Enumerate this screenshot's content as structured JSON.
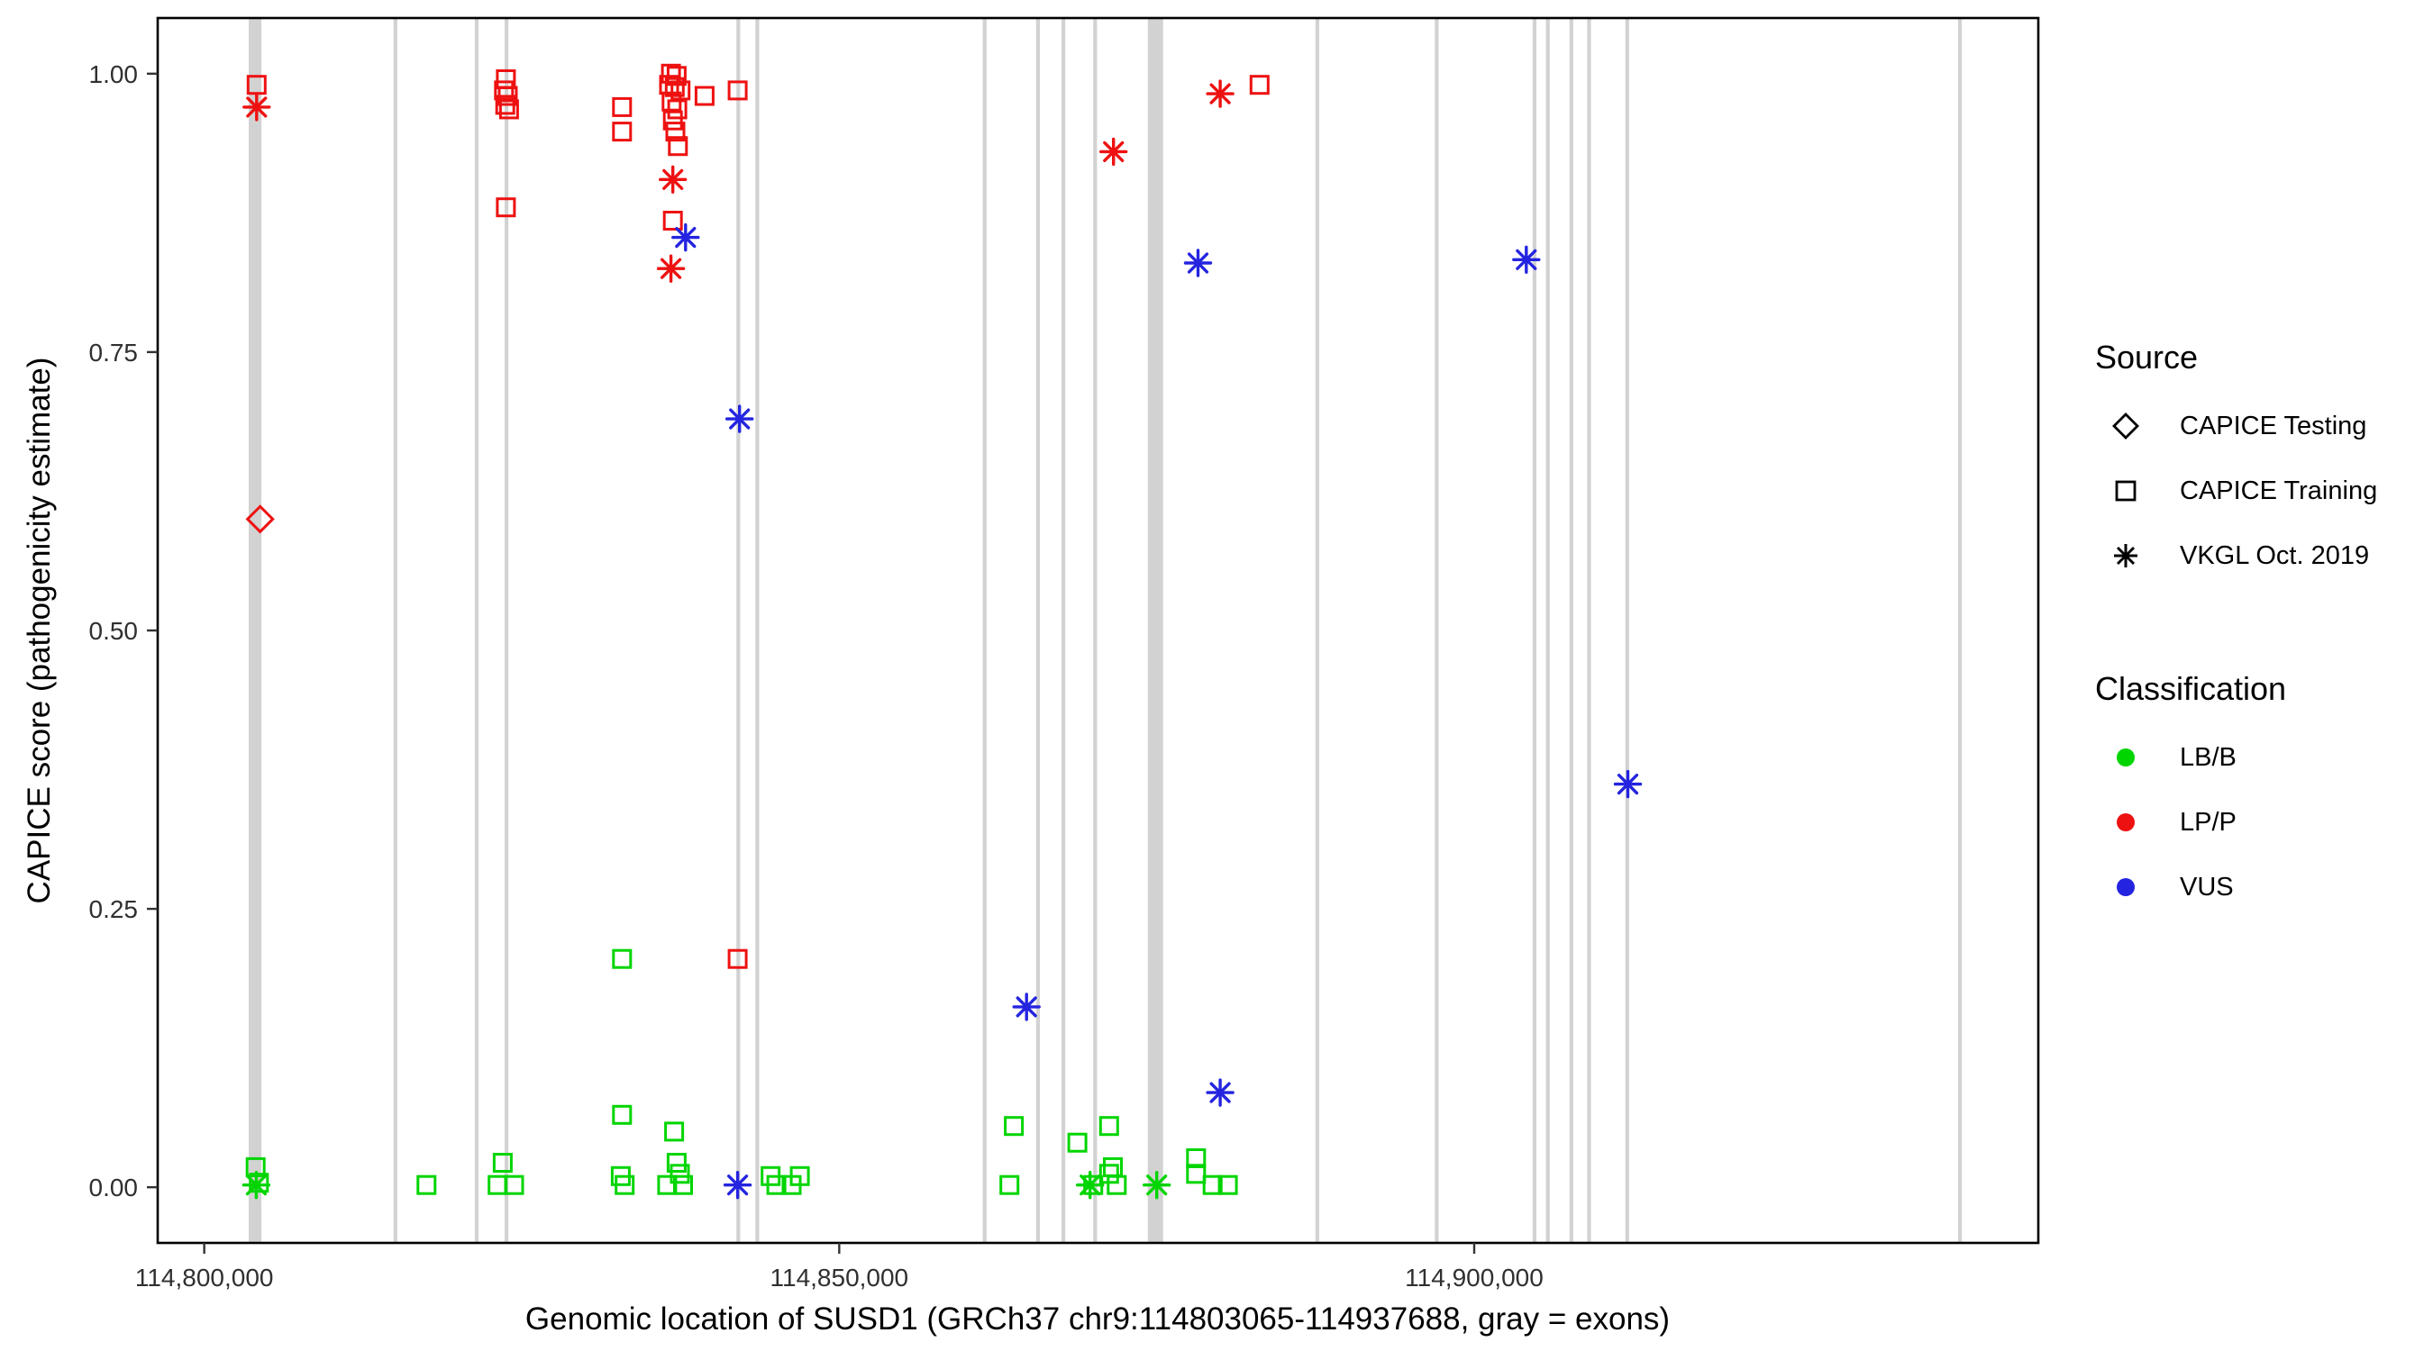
{
  "axes": {
    "x": {
      "label": "Genomic location of SUSD1 (GRCh37 chr9:114803065-114937688, gray = exons)",
      "range": [
        114796334,
        114944419
      ],
      "ticks": [
        {
          "value": 114800000,
          "label": "114,800,000"
        },
        {
          "value": 114850000,
          "label": "114,850,000"
        },
        {
          "value": 114900000,
          "label": "114,900,000"
        }
      ]
    },
    "y": {
      "label": "CAPICE score (pathogenicity estimate)",
      "range": [
        -0.05,
        1.05
      ],
      "ticks": [
        {
          "value": 0.0,
          "label": "0.00"
        },
        {
          "value": 0.25,
          "label": "0.25"
        },
        {
          "value": 0.5,
          "label": "0.50"
        },
        {
          "value": 0.75,
          "label": "0.75"
        },
        {
          "value": 1.0,
          "label": "1.00"
        }
      ]
    }
  },
  "colors": {
    "LB/B": "#00d500",
    "LP/P": "#ee1111",
    "VUS": "#2424e0",
    "exon": "#d2d2d2"
  },
  "legend": {
    "source": {
      "title": "Source",
      "items": [
        {
          "label": "CAPICE Testing",
          "shape": "diamond"
        },
        {
          "label": "CAPICE Training",
          "shape": "square"
        },
        {
          "label": "VKGL Oct. 2019",
          "shape": "asterisk"
        }
      ]
    },
    "classification": {
      "title": "Classification",
      "items": [
        {
          "label": "LB/B",
          "color": "#00d500"
        },
        {
          "label": "LP/P",
          "color": "#ee1111"
        },
        {
          "label": "VUS",
          "color": "#2424e0"
        }
      ]
    }
  },
  "chart_data": {
    "type": "scatter",
    "title": "",
    "xlabel": "Genomic location of SUSD1 (GRCh37 chr9:114803065-114937688, gray = exons)",
    "ylabel": "CAPICE score (pathogenicity estimate)",
    "xlim": [
      114796334,
      114944419
    ],
    "ylim": [
      -0.05,
      1.05
    ],
    "grid": false,
    "legend_position": "right",
    "exons_note": "gray vertical bars = exons, [start,end] genomic coords",
    "exons": [
      [
        114803500,
        114804500
      ],
      [
        114814900,
        114815200
      ],
      [
        114821300,
        114821600
      ],
      [
        114823650,
        114823950
      ],
      [
        114841900,
        114842200
      ],
      [
        114843400,
        114843700
      ],
      [
        114861300,
        114861600
      ],
      [
        114865500,
        114865800
      ],
      [
        114867500,
        114867800
      ],
      [
        114870000,
        114870300
      ],
      [
        114874300,
        114875500
      ],
      [
        114887500,
        114887800
      ],
      [
        114896900,
        114897200
      ],
      [
        114904600,
        114904900
      ],
      [
        114905650,
        114905950
      ],
      [
        114907500,
        114907800
      ],
      [
        114908900,
        114909200
      ],
      [
        114911900,
        114912200
      ],
      [
        114938100,
        114938400
      ]
    ],
    "points_format": [
      "genomic_position",
      "capice_score",
      "source(training|testing|vkgl)",
      "classification"
    ],
    "points": [
      [
        114804125,
        0.99,
        "training",
        "LP/P"
      ],
      [
        114823750,
        0.995,
        "training",
        "LP/P"
      ],
      [
        114823600,
        0.985,
        "training",
        "LP/P"
      ],
      [
        114823900,
        0.98,
        "training",
        "LP/P"
      ],
      [
        114823700,
        0.972,
        "training",
        "LP/P"
      ],
      [
        114824000,
        0.968,
        "training",
        "LP/P"
      ],
      [
        114823750,
        0.88,
        "training",
        "LP/P"
      ],
      [
        114832900,
        0.97,
        "training",
        "LP/P"
      ],
      [
        114832900,
        0.948,
        "training",
        "LP/P"
      ],
      [
        114836750,
        1.0,
        "training",
        "LP/P"
      ],
      [
        114837200,
        0.998,
        "training",
        "LP/P"
      ],
      [
        114836600,
        0.99,
        "training",
        "LP/P"
      ],
      [
        114837050,
        0.988,
        "training",
        "LP/P"
      ],
      [
        114837500,
        0.985,
        "training",
        "LP/P"
      ],
      [
        114836800,
        0.975,
        "training",
        "LP/P"
      ],
      [
        114837250,
        0.968,
        "training",
        "LP/P"
      ],
      [
        114836900,
        0.958,
        "training",
        "LP/P"
      ],
      [
        114837100,
        0.948,
        "training",
        "LP/P"
      ],
      [
        114837300,
        0.935,
        "training",
        "LP/P"
      ],
      [
        114836900,
        0.868,
        "training",
        "LP/P"
      ],
      [
        114839400,
        0.98,
        "training",
        "LP/P"
      ],
      [
        114842000,
        0.985,
        "training",
        "LP/P"
      ],
      [
        114842000,
        0.205,
        "training",
        "LP/P"
      ],
      [
        114883100,
        0.99,
        "training",
        "LP/P"
      ],
      [
        114804125,
        0.97,
        "vkgl",
        "LP/P"
      ],
      [
        114836900,
        0.905,
        "vkgl",
        "LP/P"
      ],
      [
        114836750,
        0.825,
        "vkgl",
        "LP/P"
      ],
      [
        114871600,
        0.93,
        "vkgl",
        "LP/P"
      ],
      [
        114880000,
        0.982,
        "vkgl",
        "LP/P"
      ],
      [
        114804400,
        0.6,
        "testing",
        "LP/P"
      ],
      [
        114837900,
        0.853,
        "vkgl",
        "VUS"
      ],
      [
        114842150,
        0.69,
        "vkgl",
        "VUS"
      ],
      [
        114842000,
        0.002,
        "vkgl",
        "VUS"
      ],
      [
        114864750,
        0.162,
        "vkgl",
        "VUS"
      ],
      [
        114878250,
        0.83,
        "vkgl",
        "VUS"
      ],
      [
        114880000,
        0.085,
        "vkgl",
        "VUS"
      ],
      [
        114904100,
        0.833,
        "vkgl",
        "VUS"
      ],
      [
        114912100,
        0.362,
        "vkgl",
        "VUS"
      ],
      [
        114804050,
        0.018,
        "training",
        "LB/B"
      ],
      [
        114804300,
        0.004,
        "training",
        "LB/B"
      ],
      [
        114817500,
        0.002,
        "training",
        "LB/B"
      ],
      [
        114823500,
        0.022,
        "training",
        "LB/B"
      ],
      [
        114823100,
        0.002,
        "training",
        "LB/B"
      ],
      [
        114824400,
        0.002,
        "training",
        "LB/B"
      ],
      [
        114832900,
        0.205,
        "training",
        "LB/B"
      ],
      [
        114832900,
        0.065,
        "training",
        "LB/B"
      ],
      [
        114832800,
        0.01,
        "training",
        "LB/B"
      ],
      [
        114833100,
        0.002,
        "training",
        "LB/B"
      ],
      [
        114837000,
        0.05,
        "training",
        "LB/B"
      ],
      [
        114837200,
        0.022,
        "training",
        "LB/B"
      ],
      [
        114837450,
        0.012,
        "training",
        "LB/B"
      ],
      [
        114837700,
        0.002,
        "training",
        "LB/B"
      ],
      [
        114836450,
        0.002,
        "training",
        "LB/B"
      ],
      [
        114844600,
        0.01,
        "training",
        "LB/B"
      ],
      [
        114845050,
        0.002,
        "training",
        "LB/B"
      ],
      [
        114846250,
        0.002,
        "training",
        "LB/B"
      ],
      [
        114846900,
        0.01,
        "training",
        "LB/B"
      ],
      [
        114863750,
        0.055,
        "training",
        "LB/B"
      ],
      [
        114863400,
        0.002,
        "training",
        "LB/B"
      ],
      [
        114868750,
        0.04,
        "training",
        "LB/B"
      ],
      [
        114871250,
        0.055,
        "training",
        "LB/B"
      ],
      [
        114870000,
        0.002,
        "training",
        "LB/B"
      ],
      [
        114871250,
        0.012,
        "training",
        "LB/B"
      ],
      [
        114871550,
        0.018,
        "training",
        "LB/B"
      ],
      [
        114871850,
        0.002,
        "training",
        "LB/B"
      ],
      [
        114878100,
        0.026,
        "training",
        "LB/B"
      ],
      [
        114878100,
        0.012,
        "training",
        "LB/B"
      ],
      [
        114879400,
        0.002,
        "training",
        "LB/B"
      ],
      [
        114880600,
        0.002,
        "training",
        "LB/B"
      ],
      [
        114804100,
        0.002,
        "vkgl",
        "LB/B"
      ],
      [
        114869750,
        0.002,
        "vkgl",
        "LB/B"
      ],
      [
        114875000,
        0.002,
        "vkgl",
        "LB/B"
      ]
    ]
  }
}
